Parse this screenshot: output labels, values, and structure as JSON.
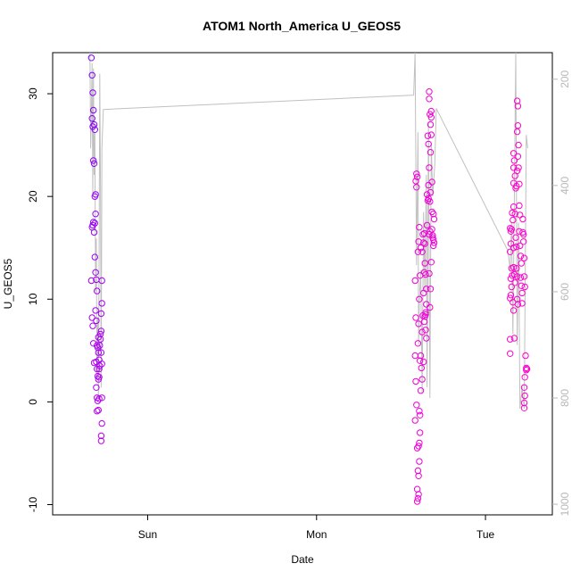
{
  "chart_data": {
    "type": "scatter",
    "title": "ATOM1 North_America U_GEOS5",
    "xlabel": "Date",
    "ylabel": "U_GEOS5",
    "y_ticks": [
      "-10",
      "0",
      "10",
      "20",
      "30"
    ],
    "x_ticks": [
      "Sun",
      "Mon",
      "Tue"
    ],
    "y2_ticks": [
      "200",
      "400",
      "600",
      "800",
      "1000"
    ],
    "ylim": [
      -11,
      34
    ],
    "y2lim": [
      1020,
      150
    ],
    "y2_reversed": true,
    "grid": false,
    "colors": {
      "series1_start": "#7f00ff",
      "series1_end": "#e000e0",
      "series2": "#ff00cc",
      "pressure_line": "#c0c0c0",
      "right_axis": "#b8b8b8"
    },
    "x_range_hours": [
      -13.5,
      57.5
    ],
    "x_tick_hours": [
      0,
      24,
      48
    ],
    "flights": [
      {
        "points": [
          [
            -8.0,
            33.5
          ],
          [
            -7.9,
            31.8
          ],
          [
            -7.8,
            30.1
          ],
          [
            -7.7,
            28.4
          ],
          [
            -7.6,
            27.0
          ],
          [
            -7.5,
            26.5
          ],
          [
            -7.9,
            27.6
          ],
          [
            -7.8,
            26.8
          ],
          [
            -7.7,
            23.5
          ],
          [
            -7.6,
            23.2
          ],
          [
            -7.5,
            20.0
          ],
          [
            -7.4,
            20.2
          ],
          [
            -7.9,
            17.0
          ],
          [
            -7.8,
            17.2
          ],
          [
            -7.7,
            17.5
          ],
          [
            -7.6,
            16.5
          ],
          [
            -7.5,
            17.4
          ],
          [
            -7.4,
            18.3
          ],
          [
            -8.0,
            11.8
          ],
          [
            -7.9,
            8.2
          ],
          [
            -7.8,
            7.4
          ],
          [
            -7.7,
            5.7
          ],
          [
            -7.6,
            3.8
          ],
          [
            -7.5,
            14.1
          ],
          [
            -7.4,
            12.6
          ],
          [
            -7.3,
            11.9
          ],
          [
            -7.2,
            10.8
          ],
          [
            -7.4,
            8.9
          ],
          [
            -7.3,
            7.9
          ],
          [
            -7.2,
            5.5
          ],
          [
            -7.1,
            5.3
          ],
          [
            -7.0,
            4.8
          ],
          [
            -7.3,
            3.9
          ],
          [
            -7.2,
            3.2
          ],
          [
            -7.1,
            2.5
          ],
          [
            -7.0,
            2.2
          ],
          [
            -7.3,
            1.4
          ],
          [
            -7.2,
            0.4
          ],
          [
            -7.1,
            0.1
          ],
          [
            -7.0,
            -0.8
          ],
          [
            -7.2,
            -0.9
          ],
          [
            -6.9,
            0.3
          ],
          [
            -6.9,
            2.4
          ],
          [
            -6.8,
            3.5
          ],
          [
            -6.8,
            5.5
          ],
          [
            -6.7,
            6.1
          ],
          [
            -6.7,
            6.6
          ],
          [
            -6.6,
            6.9
          ],
          [
            -6.6,
            8.6
          ],
          [
            -6.5,
            9.6
          ],
          [
            -6.5,
            11.8
          ],
          [
            -6.6,
            4.8
          ],
          [
            -6.5,
            3.7
          ],
          [
            -6.5,
            0.4
          ],
          [
            -6.5,
            -2.1
          ],
          [
            -6.6,
            -3.3
          ],
          [
            -6.6,
            -3.8
          ],
          [
            -6.9,
            4.1
          ],
          [
            -6.9,
            3.2
          ],
          [
            -7.0,
            6.3
          ]
        ]
      },
      {
        "points": [
          [
            38.2,
            22.2
          ],
          [
            38.3,
            21.9
          ],
          [
            38.1,
            21.5
          ],
          [
            38.2,
            20.9
          ],
          [
            38.0,
            11.8
          ],
          [
            38.1,
            8.2
          ],
          [
            38.0,
            4.5
          ],
          [
            38.1,
            2.0
          ],
          [
            38.0,
            -1.8
          ],
          [
            38.2,
            -0.3
          ],
          [
            38.3,
            -4.5
          ],
          [
            38.4,
            -6.7
          ],
          [
            38.3,
            -8.5
          ],
          [
            38.4,
            -9.4
          ],
          [
            38.3,
            -9.7
          ],
          [
            38.5,
            -9.0
          ],
          [
            38.5,
            -7.2
          ],
          [
            38.6,
            -5.8
          ],
          [
            38.6,
            -4.0
          ],
          [
            38.5,
            -4.3
          ],
          [
            38.7,
            -3.0
          ],
          [
            38.7,
            -1.3
          ],
          [
            38.6,
            -0.9
          ],
          [
            38.8,
            1.1
          ],
          [
            38.4,
            5.7
          ],
          [
            38.5,
            7.6
          ],
          [
            38.6,
            10.0
          ],
          [
            38.7,
            12.3
          ],
          [
            38.8,
            15.0
          ],
          [
            38.5,
            15.6
          ],
          [
            38.6,
            17.0
          ],
          [
            38.4,
            14.6
          ],
          [
            38.7,
            4.0
          ],
          [
            38.8,
            4.5
          ],
          [
            38.9,
            3.3
          ],
          [
            39.0,
            2.2
          ],
          [
            39.0,
            6.8
          ],
          [
            39.1,
            8.4
          ],
          [
            39.2,
            10.6
          ],
          [
            39.3,
            12.6
          ],
          [
            39.0,
            14.6
          ],
          [
            39.1,
            16.3
          ],
          [
            39.2,
            15.5
          ],
          [
            39.3,
            16.4
          ],
          [
            39.4,
            15.4
          ],
          [
            39.4,
            13.5
          ],
          [
            39.5,
            12.4
          ],
          [
            39.6,
            11.0
          ],
          [
            39.3,
            7.8
          ],
          [
            39.4,
            8.3
          ],
          [
            39.5,
            8.5
          ],
          [
            39.6,
            9.5
          ],
          [
            39.5,
            7.0
          ],
          [
            39.6,
            6.2
          ],
          [
            39.7,
            17.2
          ],
          [
            39.8,
            19.6
          ],
          [
            39.7,
            20.2
          ],
          [
            39.9,
            19.8
          ],
          [
            39.8,
            25.9
          ],
          [
            39.9,
            25.1
          ],
          [
            40.0,
            22.8
          ],
          [
            39.9,
            21.1
          ],
          [
            40.0,
            16.3
          ],
          [
            40.1,
            16.6
          ],
          [
            40.1,
            19.5
          ],
          [
            40.2,
            20.4
          ],
          [
            40.0,
            30.2
          ],
          [
            40.0,
            29.5
          ],
          [
            40.1,
            28.0
          ],
          [
            40.2,
            27.0
          ],
          [
            40.3,
            28.3
          ],
          [
            40.3,
            27.7
          ],
          [
            40.2,
            24.3
          ],
          [
            40.3,
            26.0
          ],
          [
            40.4,
            21.4
          ],
          [
            40.3,
            13.6
          ],
          [
            40.4,
            16.8
          ],
          [
            40.4,
            18.5
          ],
          [
            40.5,
            16.0
          ],
          [
            40.6,
            15.8
          ],
          [
            40.7,
            15.5
          ],
          [
            40.6,
            15.2
          ],
          [
            40.7,
            17.8
          ],
          [
            40.6,
            18.3
          ],
          [
            40.5,
            16.2
          ],
          [
            40.1,
            9.2
          ],
          [
            40.2,
            11.0
          ],
          [
            40.0,
            12.5
          ],
          [
            39.5,
            8.7
          ],
          [
            39.2,
            3.9
          ]
        ]
      },
      {
        "points": [
          [
            51.5,
            16.9
          ],
          [
            51.6,
            16.6
          ],
          [
            51.7,
            16.8
          ],
          [
            51.6,
            15.4
          ],
          [
            51.5,
            14.6
          ],
          [
            51.8,
            12.3
          ],
          [
            51.7,
            13.0
          ],
          [
            51.6,
            12.0
          ],
          [
            51.5,
            10.1
          ],
          [
            51.6,
            10.4
          ],
          [
            51.7,
            11.2
          ],
          [
            51.5,
            6.1
          ],
          [
            51.5,
            4.7
          ],
          [
            51.8,
            18.4
          ],
          [
            51.9,
            17.7
          ],
          [
            52.0,
            15.0
          ],
          [
            52.0,
            13.1
          ],
          [
            52.1,
            12.4
          ],
          [
            51.9,
            9.7
          ],
          [
            52.0,
            8.9
          ],
          [
            52.1,
            6.2
          ],
          [
            52.2,
            11.6
          ],
          [
            52.0,
            19.0
          ],
          [
            52.0,
            21.3
          ],
          [
            52.0,
            22.8
          ],
          [
            52.0,
            24.2
          ],
          [
            52.1,
            23.5
          ],
          [
            52.2,
            22.0
          ],
          [
            52.3,
            20.8
          ],
          [
            52.2,
            18.3
          ],
          [
            52.3,
            16.0
          ],
          [
            52.4,
            15.1
          ],
          [
            52.4,
            13.0
          ],
          [
            52.5,
            12.2
          ],
          [
            52.5,
            10.0
          ],
          [
            52.6,
            9.5
          ],
          [
            52.4,
            21.0
          ],
          [
            52.5,
            22.5
          ],
          [
            52.6,
            23.9
          ],
          [
            52.5,
            26.3
          ],
          [
            52.6,
            26.9
          ],
          [
            52.5,
            29.3
          ],
          [
            52.6,
            28.8
          ],
          [
            52.7,
            25.0
          ],
          [
            52.7,
            22.8
          ],
          [
            52.8,
            21.2
          ],
          [
            52.8,
            19.1
          ],
          [
            52.9,
            18.2
          ],
          [
            52.8,
            16.6
          ],
          [
            52.9,
            15.2
          ],
          [
            53.0,
            14.2
          ],
          [
            53.1,
            13.5
          ],
          [
            53.0,
            12.1
          ],
          [
            53.1,
            11.3
          ],
          [
            53.2,
            10.6
          ],
          [
            53.2,
            9.6
          ],
          [
            53.3,
            17.8
          ],
          [
            53.3,
            16.5
          ],
          [
            53.4,
            16.3
          ],
          [
            53.4,
            15.6
          ],
          [
            53.5,
            14.0
          ],
          [
            53.5,
            12.2
          ],
          [
            53.6,
            11.2
          ],
          [
            53.7,
            4.5
          ],
          [
            53.6,
            2.4
          ],
          [
            53.5,
            1.4
          ],
          [
            53.6,
            0.6
          ],
          [
            53.5,
            -0.1
          ],
          [
            53.5,
            -0.6
          ],
          [
            53.8,
            3.3
          ],
          [
            53.9,
            3.2
          ],
          [
            53.8,
            3.1
          ]
        ]
      }
    ],
    "pressure_line": [
      [
        -8.2,
        150
      ],
      [
        -8.1,
        330
      ],
      [
        -8.0,
        260
      ],
      [
        -7.9,
        170
      ],
      [
        -7.8,
        420
      ],
      [
        -7.7,
        180
      ],
      [
        -7.6,
        380
      ],
      [
        -7.5,
        300
      ],
      [
        -7.4,
        600
      ],
      [
        -7.3,
        500
      ],
      [
        -7.2,
        760
      ],
      [
        -7.1,
        650
      ],
      [
        -7.0,
        800
      ],
      [
        -6.9,
        520
      ],
      [
        -6.8,
        190
      ],
      [
        -6.7,
        400
      ],
      [
        -6.6,
        780
      ],
      [
        -6.5,
        330
      ],
      [
        -6.3,
        257
      ],
      [
        37.8,
        230
      ],
      [
        38.0,
        150
      ],
      [
        38.2,
        550
      ],
      [
        38.4,
        300
      ],
      [
        38.5,
        700
      ],
      [
        38.6,
        620
      ],
      [
        38.8,
        560
      ],
      [
        39.0,
        790
      ],
      [
        39.2,
        450
      ],
      [
        39.4,
        600
      ],
      [
        39.6,
        380
      ],
      [
        39.7,
        780
      ],
      [
        39.9,
        280
      ],
      [
        40.1,
        800
      ],
      [
        40.3,
        320
      ],
      [
        40.5,
        420
      ],
      [
        40.8,
        360
      ],
      [
        41.0,
        255
      ],
      [
        51.2,
        523
      ],
      [
        51.5,
        560
      ],
      [
        51.7,
        470
      ],
      [
        51.9,
        680
      ],
      [
        52.1,
        430
      ],
      [
        52.3,
        150
      ],
      [
        52.5,
        700
      ],
      [
        52.7,
        470
      ],
      [
        52.9,
        820
      ],
      [
        53.2,
        780
      ],
      [
        53.5,
        820
      ],
      [
        53.8,
        305
      ],
      [
        54.0,
        330
      ]
    ]
  }
}
